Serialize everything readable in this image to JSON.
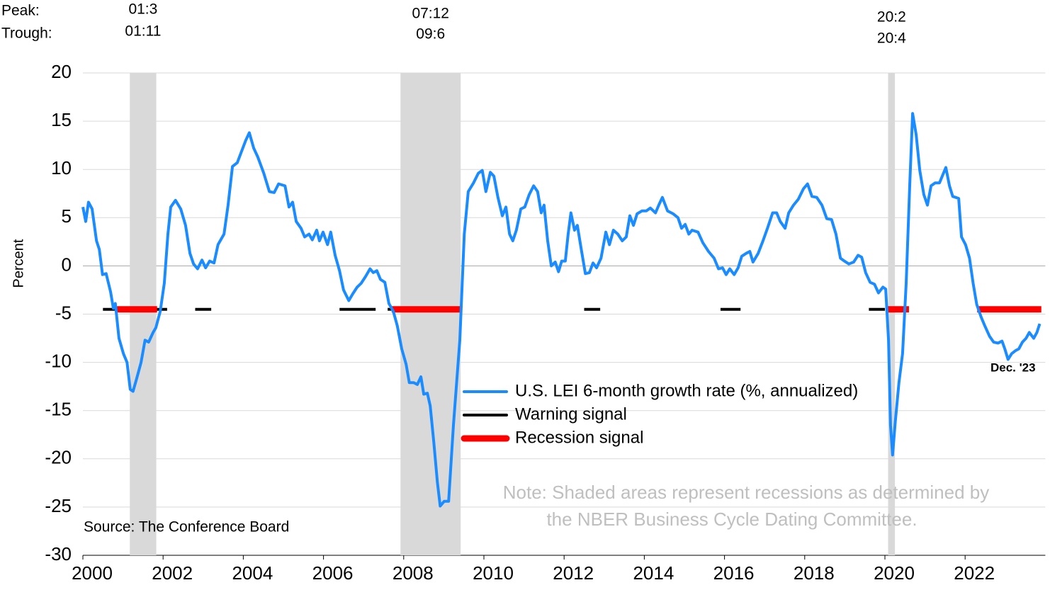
{
  "chart_data": {
    "type": "line",
    "y_label": "Percent",
    "peak_label": "Peak:",
    "trough_label": "Trough:",
    "source": "Source: The Conference Board",
    "note": [
      "Note: Shaded areas represent recessions as determined by",
      "the NBER Business Cycle Dating Committee."
    ],
    "annotation": "Dec. '23",
    "xlim": [
      2000,
      2024
    ],
    "ylim": [
      -30,
      20
    ],
    "xticks": [
      2000,
      2002,
      2004,
      2006,
      2008,
      2010,
      2012,
      2014,
      2016,
      2018,
      2020,
      2022
    ],
    "yticks": [
      -30,
      -25,
      -20,
      -15,
      -10,
      -5,
      0,
      5,
      10,
      15,
      20
    ],
    "grid": true,
    "recessions": [
      {
        "start": 2001.17,
        "end": 2001.83,
        "peak": "01:3",
        "trough": "01:11"
      },
      {
        "start": 2007.92,
        "end": 2009.42,
        "peak": "07:12",
        "trough": "09:6"
      },
      {
        "start": 2020.08,
        "end": 2020.25,
        "peak": "20:2",
        "trough": "20:4"
      }
    ],
    "series": [
      {
        "name": "U.S. LEI 6-month growth rate (%, annualized)",
        "color": "#1a8cff",
        "x": [
          2000.0,
          2000.07,
          2000.14,
          2000.23,
          2000.34,
          2000.41,
          2000.49,
          2000.58,
          2000.69,
          2000.76,
          2000.81,
          2000.9,
          2001.01,
          2001.1,
          2001.18,
          2001.25,
          2001.34,
          2001.45,
          2001.55,
          2001.64,
          2001.75,
          2001.82,
          2001.93,
          2002.03,
          2002.12,
          2002.19,
          2002.31,
          2002.44,
          2002.56,
          2002.67,
          2002.76,
          2002.86,
          2002.97,
          2003.06,
          2003.16,
          2003.27,
          2003.37,
          2003.52,
          2003.62,
          2003.73,
          2003.85,
          2003.96,
          2004.06,
          2004.15,
          2004.26,
          2004.36,
          2004.51,
          2004.65,
          2004.77,
          2004.88,
          2005.04,
          2005.14,
          2005.23,
          2005.32,
          2005.44,
          2005.53,
          2005.64,
          2005.72,
          2005.83,
          2005.9,
          2005.99,
          2006.1,
          2006.18,
          2006.29,
          2006.4,
          2006.5,
          2006.63,
          2006.73,
          2006.84,
          2006.94,
          2007.05,
          2007.16,
          2007.24,
          2007.33,
          2007.42,
          2007.53,
          2007.63,
          2007.74,
          2007.84,
          2007.95,
          2008.06,
          2008.14,
          2008.25,
          2008.34,
          2008.43,
          2008.5,
          2008.59,
          2008.66,
          2008.75,
          2008.84,
          2008.91,
          2009.01,
          2009.12,
          2009.24,
          2009.4,
          2009.51,
          2009.61,
          2009.74,
          2009.86,
          2009.96,
          2010.05,
          2010.16,
          2010.25,
          2010.35,
          2010.46,
          2010.55,
          2010.64,
          2010.72,
          2010.81,
          2010.92,
          2011.02,
          2011.13,
          2011.24,
          2011.34,
          2011.43,
          2011.5,
          2011.59,
          2011.68,
          2011.78,
          2011.86,
          2011.94,
          2012.03,
          2012.1,
          2012.17,
          2012.26,
          2012.33,
          2012.42,
          2012.53,
          2012.63,
          2012.72,
          2012.81,
          2012.92,
          2013.04,
          2013.13,
          2013.23,
          2013.34,
          2013.45,
          2013.55,
          2013.64,
          2013.73,
          2013.82,
          2013.94,
          2014.05,
          2014.15,
          2014.28,
          2014.36,
          2014.45,
          2014.58,
          2014.72,
          2014.84,
          2014.93,
          2015.02,
          2015.11,
          2015.19,
          2015.34,
          2015.46,
          2015.6,
          2015.74,
          2015.85,
          2015.95,
          2016.04,
          2016.13,
          2016.24,
          2016.34,
          2016.43,
          2016.54,
          2016.63,
          2016.71,
          2016.84,
          2016.96,
          2017.07,
          2017.2,
          2017.3,
          2017.39,
          2017.51,
          2017.6,
          2017.72,
          2017.84,
          2017.97,
          2018.07,
          2018.18,
          2018.3,
          2018.43,
          2018.55,
          2018.67,
          2018.78,
          2018.89,
          2018.99,
          2019.1,
          2019.22,
          2019.33,
          2019.42,
          2019.52,
          2019.63,
          2019.74,
          2019.84,
          2019.95,
          2020.02,
          2020.09,
          2020.14,
          2020.19,
          2020.26,
          2020.35,
          2020.44,
          2020.53,
          2020.62,
          2020.69,
          2020.78,
          2020.87,
          2020.97,
          2021.06,
          2021.15,
          2021.25,
          2021.36,
          2021.43,
          2021.52,
          2021.61,
          2021.69,
          2021.84,
          2021.91,
          2022.01,
          2022.11,
          2022.2,
          2022.29,
          2022.4,
          2022.49,
          2022.61,
          2022.71,
          2022.82,
          2022.92,
          2022.99,
          2023.07,
          2023.16,
          2023.25,
          2023.34,
          2023.43,
          2023.52,
          2023.6,
          2023.71,
          2023.79,
          2023.86
        ],
        "values": [
          6.1,
          4.6,
          6.6,
          5.9,
          2.6,
          1.7,
          -0.9,
          -0.8,
          -2.7,
          -4.4,
          -3.9,
          -7.5,
          -9.1,
          -10.0,
          -12.8,
          -13.0,
          -11.7,
          -10.0,
          -7.7,
          -7.9,
          -6.9,
          -6.4,
          -4.7,
          -1.8,
          3.3,
          6.1,
          6.8,
          5.9,
          4.2,
          1.3,
          0.2,
          -0.3,
          0.6,
          -0.2,
          0.5,
          0.3,
          2.2,
          3.3,
          6.3,
          10.3,
          10.7,
          11.9,
          13.0,
          13.8,
          12.2,
          11.3,
          9.6,
          7.7,
          7.6,
          8.5,
          8.3,
          6.1,
          6.6,
          4.6,
          3.9,
          3.0,
          3.3,
          2.7,
          3.7,
          2.6,
          3.5,
          2.2,
          3.5,
          1.1,
          -0.5,
          -2.5,
          -3.6,
          -2.9,
          -2.2,
          -1.8,
          -1.1,
          -0.3,
          -0.7,
          -0.5,
          -1.4,
          -1.7,
          -3.9,
          -4.7,
          -6.2,
          -8.6,
          -10.2,
          -12.1,
          -12.1,
          -12.3,
          -11.5,
          -13.3,
          -13.2,
          -14.5,
          -18.3,
          -22.4,
          -24.9,
          -24.4,
          -24.4,
          -16.5,
          -7.7,
          3.3,
          7.7,
          8.6,
          9.6,
          9.9,
          7.7,
          9.7,
          9.3,
          7.1,
          5.2,
          6.1,
          3.3,
          2.6,
          3.7,
          5.9,
          6.1,
          7.4,
          8.3,
          7.7,
          5.5,
          6.3,
          2.6,
          0.0,
          0.4,
          -0.6,
          0.5,
          0.5,
          3.3,
          5.5,
          3.7,
          4.2,
          1.9,
          -0.8,
          -0.7,
          0.3,
          -0.2,
          0.8,
          3.5,
          2.2,
          3.7,
          3.3,
          2.6,
          3.0,
          5.2,
          4.2,
          5.4,
          5.7,
          5.7,
          6.0,
          5.5,
          6.3,
          7.1,
          5.7,
          5.4,
          5.0,
          3.9,
          4.3,
          3.3,
          3.7,
          3.5,
          2.4,
          1.5,
          0.8,
          -0.3,
          -0.2,
          -0.9,
          -0.3,
          -0.9,
          -0.2,
          1.0,
          1.3,
          1.5,
          0.4,
          1.3,
          2.6,
          3.9,
          5.5,
          5.5,
          4.6,
          3.9,
          5.5,
          6.3,
          6.9,
          8.0,
          8.5,
          7.2,
          7.1,
          6.3,
          4.9,
          4.8,
          3.3,
          0.8,
          0.5,
          0.2,
          0.4,
          1.1,
          0.9,
          -0.7,
          -1.7,
          -1.9,
          -2.8,
          -2.2,
          -2.4,
          -7.7,
          -16.5,
          -19.6,
          -16.1,
          -12.1,
          -9.1,
          -1.8,
          8.5,
          15.8,
          13.6,
          9.9,
          7.4,
          6.3,
          8.3,
          8.6,
          8.6,
          9.3,
          10.2,
          8.3,
          7.2,
          7.0,
          3.0,
          2.2,
          0.8,
          -1.8,
          -4.0,
          -5.3,
          -6.2,
          -7.3,
          -7.9,
          -8.0,
          -7.8,
          -8.6,
          -9.7,
          -9.1,
          -8.8,
          -8.6,
          -7.9,
          -7.5,
          -6.9,
          -7.5,
          -6.9,
          -6.0
        ]
      },
      {
        "name": "Warning signal",
        "color": "#000000",
        "level": -4.5,
        "segments": [
          [
            2000.5,
            2002.1
          ],
          [
            2002.8,
            2003.2
          ],
          [
            2006.4,
            2007.3
          ],
          [
            2007.6,
            2007.7
          ],
          [
            2012.5,
            2012.9
          ],
          [
            2015.9,
            2016.4
          ],
          [
            2019.6,
            2020.0
          ]
        ]
      },
      {
        "name": "Recession signal",
        "color": "#ff0000",
        "level": -4.5,
        "segments": [
          [
            2000.85,
            2001.85
          ],
          [
            2007.7,
            2009.45
          ],
          [
            2020.05,
            2020.6
          ],
          [
            2022.3,
            2023.9
          ]
        ]
      }
    ]
  }
}
